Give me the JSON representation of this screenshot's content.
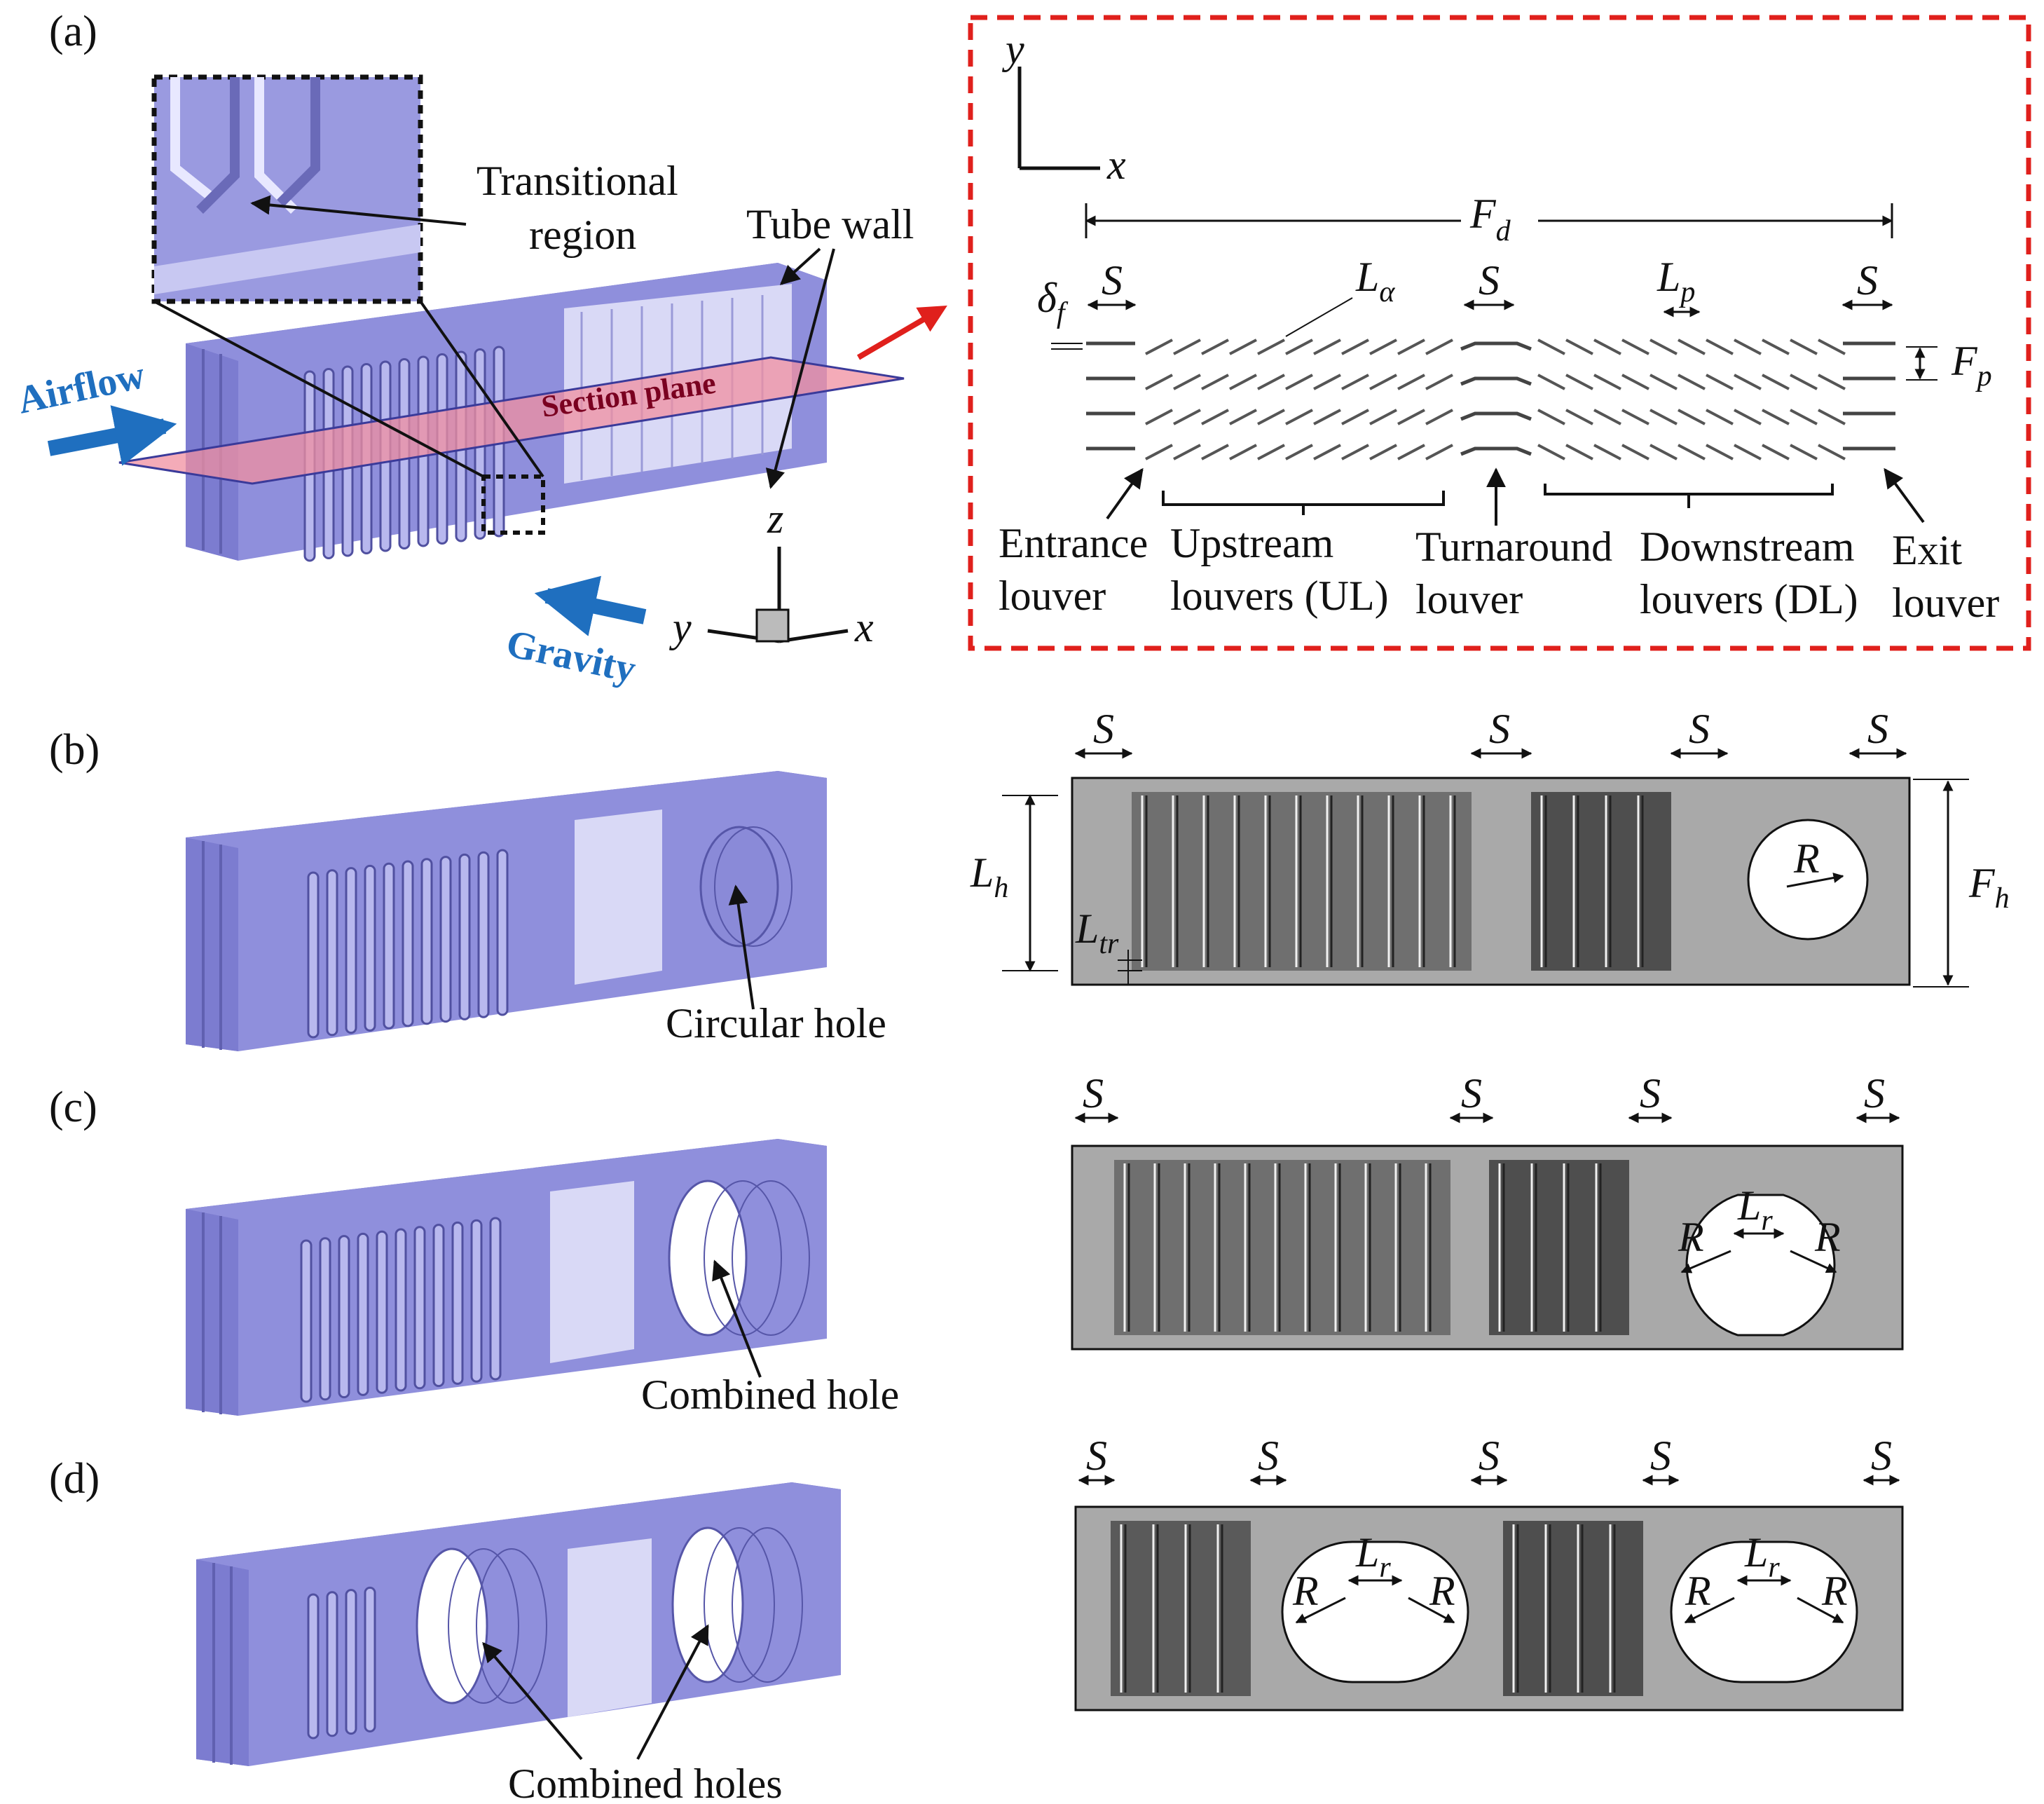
{
  "panels": {
    "a": "(a)",
    "b": "(b)",
    "c": "(c)",
    "d": "(d)"
  },
  "panel_a_3d": {
    "transitional_line1": "Transitional",
    "transitional_line2": "region",
    "tube_wall": "Tube wall",
    "airflow": "Airflow",
    "section_plane": "Section plane",
    "gravity": "Gravity",
    "axis_z": "z",
    "axis_y": "y",
    "axis_x": "x"
  },
  "panel_a_section": {
    "axis_y": "y",
    "axis_x": "x",
    "fd_main": "F",
    "fd_sub": "d",
    "s": "S",
    "delta_main": "δ",
    "delta_sub": "f",
    "l_alpha_main": "L",
    "l_alpha_sub": "α",
    "lp_main": "L",
    "lp_sub": "p",
    "fp_main": "F",
    "fp_sub": "p",
    "entrance_1": "Entrance",
    "entrance_2": "louver",
    "upstream_1": "Upstream",
    "upstream_2": "louvers (UL)",
    "turnaround_1": "Turnaround",
    "turnaround_2": "louver",
    "downstream_1": "Downstream",
    "downstream_2": "louvers (DL)",
    "exit_1": "Exit",
    "exit_2": "louver"
  },
  "panel_b": {
    "label": "Circular hole",
    "s": "S",
    "lh_main": "L",
    "lh_sub": "h",
    "ltr_main": "L",
    "ltr_sub": "tr",
    "fh_main": "F",
    "fh_sub": "h",
    "r": "R"
  },
  "panel_c": {
    "label": "Combined hole",
    "s": "S",
    "r": "R",
    "lr_main": "L",
    "lr_sub": "r"
  },
  "panel_d": {
    "label": "Combined holes",
    "s": "S",
    "r": "R",
    "lr_main": "L",
    "lr_sub": "r"
  },
  "colors": {
    "fin": "#8f8fdc",
    "fin_top": "#6e6ec0",
    "section_plane": "#f08fa0",
    "plate": "#a9a9a9",
    "callout_red": "#e0201c",
    "airflow_blue": "#1f6fbf"
  }
}
